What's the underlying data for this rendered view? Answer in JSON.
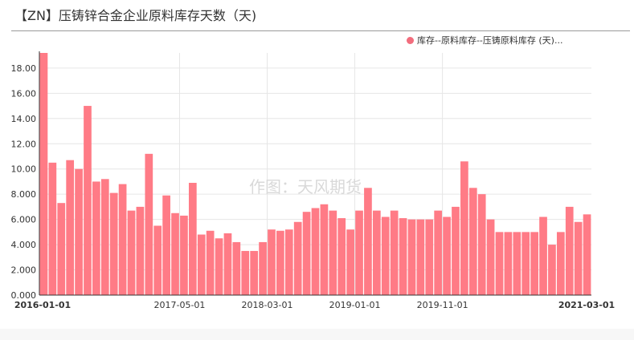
{
  "title": "【ZN】压铸锌合金企业原料库存天数（天)",
  "watermark": "作图：天风期货",
  "legend": {
    "label": "库存--原料库存--压铸原料库存 (天)...",
    "color": "#f26d7d"
  },
  "colors": {
    "bar": "#ff7b86",
    "grid": "#e6e6e6",
    "axis": "#333333"
  },
  "chart_data": {
    "type": "bar",
    "series": [
      {
        "name": "库存--原料库存--压铸原料库存 (天)...",
        "values": [
          19.2,
          10.5,
          7.3,
          10.7,
          10.0,
          15.0,
          9.0,
          9.2,
          8.1,
          8.8,
          6.7,
          7.0,
          11.2,
          5.5,
          7.9,
          6.5,
          6.3,
          8.9,
          4.8,
          5.1,
          4.5,
          4.9,
          4.2,
          3.5,
          3.5,
          4.2,
          5.2,
          5.1,
          5.2,
          5.8,
          6.6,
          6.9,
          7.2,
          6.7,
          6.1,
          5.2,
          6.7,
          8.5,
          6.7,
          6.2,
          6.7,
          6.1,
          6.0,
          6.0,
          6.0,
          6.7,
          6.2,
          7.0,
          10.6,
          8.5,
          8.0,
          6.0,
          5.0,
          5.0,
          5.0,
          5.0,
          5.0,
          6.2,
          4.0,
          5.0,
          7.0,
          5.8,
          6.4
        ]
      }
    ],
    "x_ticks": [
      {
        "label": "2016-01-01",
        "index": 0,
        "bold": true
      },
      {
        "label": "2017-05-01",
        "index": 16,
        "bold": false
      },
      {
        "label": "2018-03-01",
        "index": 26,
        "bold": false
      },
      {
        "label": "2019-01-01",
        "index": 36,
        "bold": false
      },
      {
        "label": "2019-11-01",
        "index": 46,
        "bold": false
      },
      {
        "label": "2021-03-01",
        "index": 62,
        "bold": true
      }
    ],
    "y_ticks": [
      "0.000",
      "2.000",
      "4.000",
      "6.000",
      "8.000",
      "10.00",
      "12.00",
      "14.00",
      "16.00",
      "18.00"
    ],
    "ylim": [
      0,
      19.2
    ],
    "grid": true,
    "legend_position": "top-right"
  }
}
